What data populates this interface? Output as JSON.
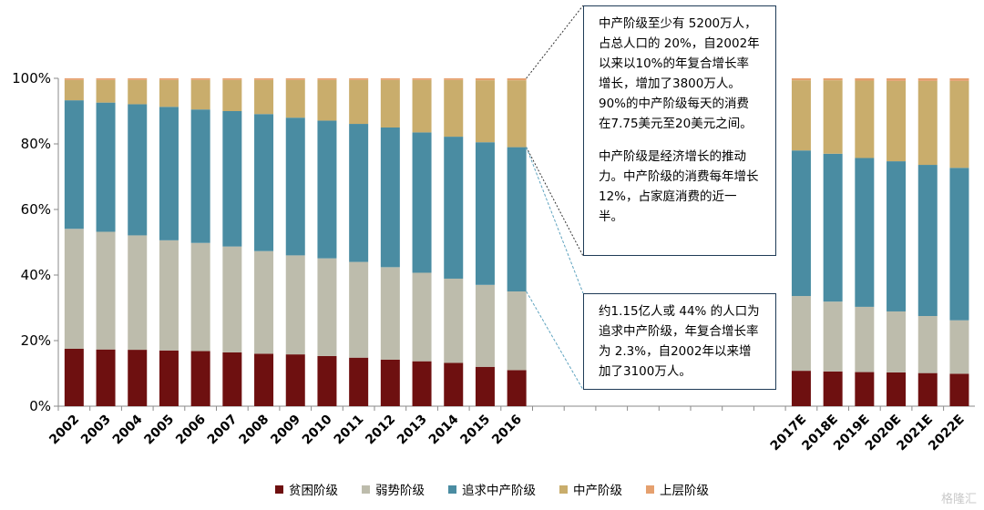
{
  "chart_data": {
    "type": "bar",
    "stacked": true,
    "categories": [
      "2002",
      "2003",
      "2004",
      "2005",
      "2006",
      "2007",
      "2008",
      "2009",
      "2010",
      "2011",
      "2012",
      "2013",
      "2014",
      "2015",
      "2016",
      "2017E",
      "2018E",
      "2019E",
      "2020E",
      "2021E",
      "2022E"
    ],
    "series": [
      {
        "name": "贫困阶级",
        "color": "#6e1010",
        "values": [
          17.5,
          17.3,
          17.2,
          17.0,
          16.8,
          16.4,
          16.0,
          15.8,
          15.3,
          14.8,
          14.2,
          13.7,
          13.2,
          12.0,
          11.0,
          10.8,
          10.6,
          10.4,
          10.3,
          10.1,
          9.9
        ]
      },
      {
        "name": "弱势阶级",
        "color": "#bdbcac",
        "values": [
          36.6,
          35.9,
          34.9,
          33.6,
          33.0,
          32.3,
          31.3,
          30.2,
          29.8,
          29.2,
          28.2,
          27.0,
          25.7,
          25.0,
          24.0,
          22.8,
          21.3,
          19.9,
          18.6,
          17.4,
          16.3
        ]
      },
      {
        "name": "追求中产阶级",
        "color": "#4a8ca2",
        "values": [
          39.2,
          39.4,
          40.0,
          40.7,
          40.7,
          41.3,
          41.8,
          42.0,
          42.0,
          42.1,
          42.6,
          42.8,
          43.3,
          43.5,
          44.0,
          44.4,
          45.1,
          45.4,
          45.8,
          46.1,
          46.5
        ]
      },
      {
        "name": "中产阶级",
        "color": "#c9ad6c",
        "values": [
          6.2,
          6.9,
          7.4,
          8.2,
          9.0,
          9.5,
          10.4,
          11.5,
          12.4,
          13.4,
          14.5,
          16.0,
          17.3,
          18.9,
          20.4,
          21.4,
          22.4,
          23.6,
          24.5,
          25.6,
          26.5
        ]
      },
      {
        "name": "上层阶级",
        "color": "#e5a06e",
        "values": [
          0.5,
          0.5,
          0.5,
          0.5,
          0.5,
          0.5,
          0.5,
          0.5,
          0.5,
          0.5,
          0.5,
          0.5,
          0.5,
          0.6,
          0.6,
          0.6,
          0.6,
          0.7,
          0.8,
          0.8,
          0.8
        ]
      }
    ],
    "yaxis": {
      "ticks": [
        "0%",
        "20%",
        "40%",
        "60%",
        "80%",
        "100%"
      ],
      "ylim": [
        0,
        100
      ]
    },
    "grid": false,
    "legend_position": "bottom"
  },
  "annotations": {
    "box1_p1": "中产阶级至少有 5200万人，占总人口的 20%，自2002年以来以10%的年复合增长率增长，增加了3800万人。90%的中产阶级每天的消费在7.75美元至20美元之间。",
    "box1_p2": "中产阶级是经济增长的推动力。中产阶级的消费每年增长12%，占家庭消费的近一半。",
    "box2": "约1.15亿人或 44% 的人口为追求中产阶级，年复合增长率为 2.3%，自2002年以来增加了3100万人。"
  },
  "watermark": "格隆汇"
}
